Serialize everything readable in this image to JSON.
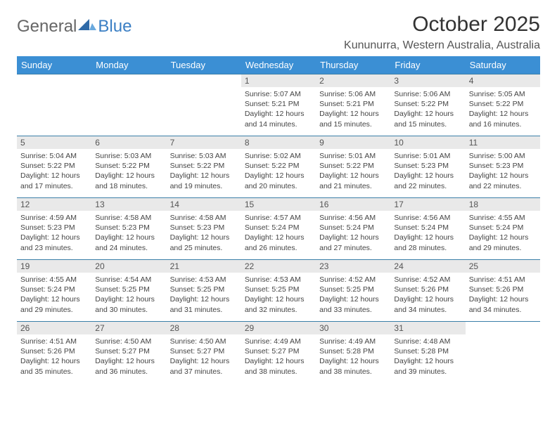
{
  "logo": {
    "general": "General",
    "blue": "Blue"
  },
  "title": "October 2025",
  "location": "Kununurra, Western Australia, Australia",
  "colors": {
    "header_bg": "#3b8fd4",
    "header_text": "#ffffff",
    "cell_border": "#3b7fa8",
    "daynum_bg": "#e9e9e9",
    "text": "#444444",
    "logo_blue": "#3b7fc4",
    "logo_gray": "#666666",
    "page_bg": "#ffffff"
  },
  "typography": {
    "title_fontsize": 30,
    "location_fontsize": 16,
    "header_fontsize": 13,
    "daynum_fontsize": 12,
    "body_fontsize": 10.5,
    "logo_fontsize": 24
  },
  "days_of_week": [
    "Sunday",
    "Monday",
    "Tuesday",
    "Wednesday",
    "Thursday",
    "Friday",
    "Saturday"
  ],
  "weeks": [
    [
      {
        "day": null
      },
      {
        "day": null
      },
      {
        "day": null
      },
      {
        "day": "1",
        "sunrise": "Sunrise: 5:07 AM",
        "sunset": "Sunset: 5:21 PM",
        "daylight1": "Daylight: 12 hours",
        "daylight2": "and 14 minutes."
      },
      {
        "day": "2",
        "sunrise": "Sunrise: 5:06 AM",
        "sunset": "Sunset: 5:21 PM",
        "daylight1": "Daylight: 12 hours",
        "daylight2": "and 15 minutes."
      },
      {
        "day": "3",
        "sunrise": "Sunrise: 5:06 AM",
        "sunset": "Sunset: 5:22 PM",
        "daylight1": "Daylight: 12 hours",
        "daylight2": "and 15 minutes."
      },
      {
        "day": "4",
        "sunrise": "Sunrise: 5:05 AM",
        "sunset": "Sunset: 5:22 PM",
        "daylight1": "Daylight: 12 hours",
        "daylight2": "and 16 minutes."
      }
    ],
    [
      {
        "day": "5",
        "sunrise": "Sunrise: 5:04 AM",
        "sunset": "Sunset: 5:22 PM",
        "daylight1": "Daylight: 12 hours",
        "daylight2": "and 17 minutes."
      },
      {
        "day": "6",
        "sunrise": "Sunrise: 5:03 AM",
        "sunset": "Sunset: 5:22 PM",
        "daylight1": "Daylight: 12 hours",
        "daylight2": "and 18 minutes."
      },
      {
        "day": "7",
        "sunrise": "Sunrise: 5:03 AM",
        "sunset": "Sunset: 5:22 PM",
        "daylight1": "Daylight: 12 hours",
        "daylight2": "and 19 minutes."
      },
      {
        "day": "8",
        "sunrise": "Sunrise: 5:02 AM",
        "sunset": "Sunset: 5:22 PM",
        "daylight1": "Daylight: 12 hours",
        "daylight2": "and 20 minutes."
      },
      {
        "day": "9",
        "sunrise": "Sunrise: 5:01 AM",
        "sunset": "Sunset: 5:22 PM",
        "daylight1": "Daylight: 12 hours",
        "daylight2": "and 21 minutes."
      },
      {
        "day": "10",
        "sunrise": "Sunrise: 5:01 AM",
        "sunset": "Sunset: 5:23 PM",
        "daylight1": "Daylight: 12 hours",
        "daylight2": "and 22 minutes."
      },
      {
        "day": "11",
        "sunrise": "Sunrise: 5:00 AM",
        "sunset": "Sunset: 5:23 PM",
        "daylight1": "Daylight: 12 hours",
        "daylight2": "and 22 minutes."
      }
    ],
    [
      {
        "day": "12",
        "sunrise": "Sunrise: 4:59 AM",
        "sunset": "Sunset: 5:23 PM",
        "daylight1": "Daylight: 12 hours",
        "daylight2": "and 23 minutes."
      },
      {
        "day": "13",
        "sunrise": "Sunrise: 4:58 AM",
        "sunset": "Sunset: 5:23 PM",
        "daylight1": "Daylight: 12 hours",
        "daylight2": "and 24 minutes."
      },
      {
        "day": "14",
        "sunrise": "Sunrise: 4:58 AM",
        "sunset": "Sunset: 5:23 PM",
        "daylight1": "Daylight: 12 hours",
        "daylight2": "and 25 minutes."
      },
      {
        "day": "15",
        "sunrise": "Sunrise: 4:57 AM",
        "sunset": "Sunset: 5:24 PM",
        "daylight1": "Daylight: 12 hours",
        "daylight2": "and 26 minutes."
      },
      {
        "day": "16",
        "sunrise": "Sunrise: 4:56 AM",
        "sunset": "Sunset: 5:24 PM",
        "daylight1": "Daylight: 12 hours",
        "daylight2": "and 27 minutes."
      },
      {
        "day": "17",
        "sunrise": "Sunrise: 4:56 AM",
        "sunset": "Sunset: 5:24 PM",
        "daylight1": "Daylight: 12 hours",
        "daylight2": "and 28 minutes."
      },
      {
        "day": "18",
        "sunrise": "Sunrise: 4:55 AM",
        "sunset": "Sunset: 5:24 PM",
        "daylight1": "Daylight: 12 hours",
        "daylight2": "and 29 minutes."
      }
    ],
    [
      {
        "day": "19",
        "sunrise": "Sunrise: 4:55 AM",
        "sunset": "Sunset: 5:24 PM",
        "daylight1": "Daylight: 12 hours",
        "daylight2": "and 29 minutes."
      },
      {
        "day": "20",
        "sunrise": "Sunrise: 4:54 AM",
        "sunset": "Sunset: 5:25 PM",
        "daylight1": "Daylight: 12 hours",
        "daylight2": "and 30 minutes."
      },
      {
        "day": "21",
        "sunrise": "Sunrise: 4:53 AM",
        "sunset": "Sunset: 5:25 PM",
        "daylight1": "Daylight: 12 hours",
        "daylight2": "and 31 minutes."
      },
      {
        "day": "22",
        "sunrise": "Sunrise: 4:53 AM",
        "sunset": "Sunset: 5:25 PM",
        "daylight1": "Daylight: 12 hours",
        "daylight2": "and 32 minutes."
      },
      {
        "day": "23",
        "sunrise": "Sunrise: 4:52 AM",
        "sunset": "Sunset: 5:25 PM",
        "daylight1": "Daylight: 12 hours",
        "daylight2": "and 33 minutes."
      },
      {
        "day": "24",
        "sunrise": "Sunrise: 4:52 AM",
        "sunset": "Sunset: 5:26 PM",
        "daylight1": "Daylight: 12 hours",
        "daylight2": "and 34 minutes."
      },
      {
        "day": "25",
        "sunrise": "Sunrise: 4:51 AM",
        "sunset": "Sunset: 5:26 PM",
        "daylight1": "Daylight: 12 hours",
        "daylight2": "and 34 minutes."
      }
    ],
    [
      {
        "day": "26",
        "sunrise": "Sunrise: 4:51 AM",
        "sunset": "Sunset: 5:26 PM",
        "daylight1": "Daylight: 12 hours",
        "daylight2": "and 35 minutes."
      },
      {
        "day": "27",
        "sunrise": "Sunrise: 4:50 AM",
        "sunset": "Sunset: 5:27 PM",
        "daylight1": "Daylight: 12 hours",
        "daylight2": "and 36 minutes."
      },
      {
        "day": "28",
        "sunrise": "Sunrise: 4:50 AM",
        "sunset": "Sunset: 5:27 PM",
        "daylight1": "Daylight: 12 hours",
        "daylight2": "and 37 minutes."
      },
      {
        "day": "29",
        "sunrise": "Sunrise: 4:49 AM",
        "sunset": "Sunset: 5:27 PM",
        "daylight1": "Daylight: 12 hours",
        "daylight2": "and 38 minutes."
      },
      {
        "day": "30",
        "sunrise": "Sunrise: 4:49 AM",
        "sunset": "Sunset: 5:28 PM",
        "daylight1": "Daylight: 12 hours",
        "daylight2": "and 38 minutes."
      },
      {
        "day": "31",
        "sunrise": "Sunrise: 4:48 AM",
        "sunset": "Sunset: 5:28 PM",
        "daylight1": "Daylight: 12 hours",
        "daylight2": "and 39 minutes."
      },
      {
        "day": null
      }
    ]
  ]
}
